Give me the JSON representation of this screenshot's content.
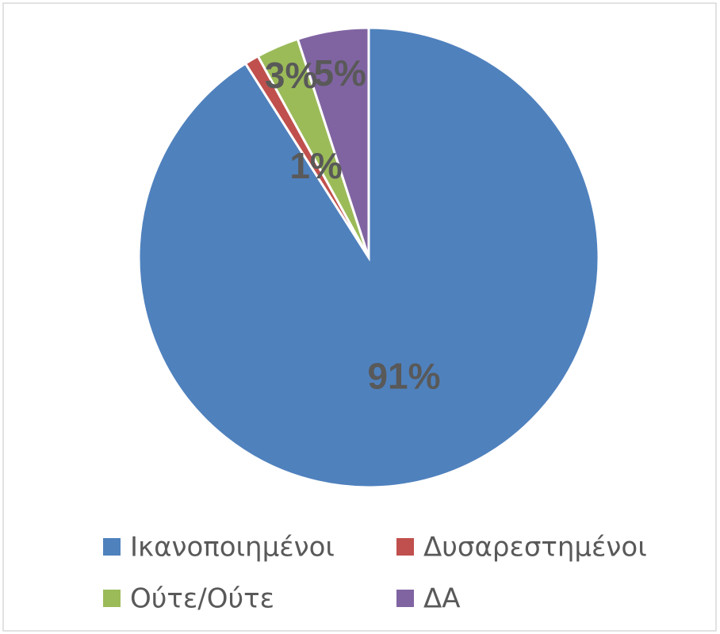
{
  "chart_data": {
    "type": "pie",
    "categories": [
      "Ικανοποιημένοι",
      "Δυσαρεστημένοι",
      "Ούτε/Ούτε",
      "ΔΑ"
    ],
    "values": [
      91,
      1,
      3,
      5
    ],
    "value_labels": [
      "91%",
      "1%",
      "3%",
      "5%"
    ],
    "colors": [
      "#4f81bd",
      "#c0504d",
      "#9bbb59",
      "#8064a2"
    ],
    "legend": "bottom"
  }
}
